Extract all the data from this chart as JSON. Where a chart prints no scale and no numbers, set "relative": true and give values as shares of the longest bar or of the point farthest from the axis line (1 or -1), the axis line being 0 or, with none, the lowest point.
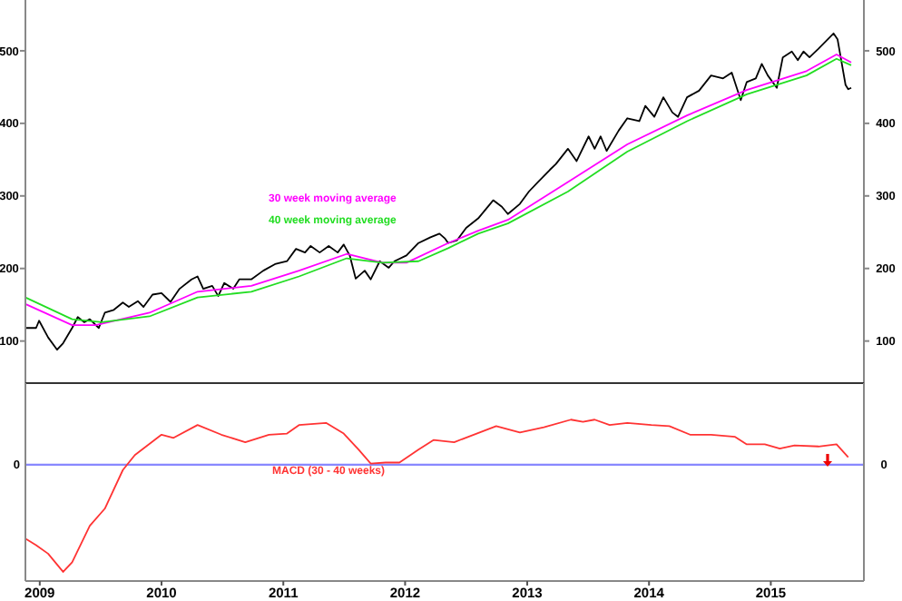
{
  "chart_data": [
    {
      "type": "line",
      "xlim": [
        "2008-11-19",
        "2015-10-07"
      ],
      "ylim": [
        42,
        570
      ],
      "yticks": [
        100,
        200,
        300,
        400,
        500
      ],
      "y2lim": [
        42,
        570
      ],
      "y2ticks": [
        100,
        200,
        300,
        400,
        500
      ],
      "tick_labels": "y",
      "series": [
        {
          "color": "#000000",
          "x": [
            "2008-11-19",
            "2008-12-21",
            "2008-12-30",
            "2009-01-26",
            "2009-02-22",
            "2009-03-12",
            "2009-04-08",
            "2009-04-25",
            "2009-05-14",
            "2009-05-31",
            "2009-06-27",
            "2009-07-15",
            "2009-08-11",
            "2009-09-07",
            "2009-09-25",
            "2009-10-22",
            "2009-11-08",
            "2009-12-05",
            "2010-01-01",
            "2010-01-28",
            "2010-02-24",
            "2010-04-01",
            "2010-04-19",
            "2010-05-06",
            "2010-06-02",
            "2010-06-20",
            "2010-07-08",
            "2010-08-04",
            "2010-08-22",
            "2010-09-27",
            "2010-11-02",
            "2010-12-07",
            "2011-01-12",
            "2011-02-08",
            "2011-03-07",
            "2011-03-24",
            "2011-04-20",
            "2011-05-17",
            "2011-06-13",
            "2011-07-01",
            "2011-07-19",
            "2011-08-06",
            "2011-09-02",
            "2011-09-20",
            "2011-10-17",
            "2011-11-13",
            "2011-11-30",
            "2012-01-05",
            "2012-02-10",
            "2012-03-17",
            "2012-04-13",
            "2012-04-30",
            "2012-05-09",
            "2012-06-05",
            "2012-07-02",
            "2012-08-07",
            "2012-09-21",
            "2012-10-17",
            "2012-11-04",
            "2012-12-10",
            "2013-01-06",
            "2013-02-02",
            "2013-03-10",
            "2013-03-28",
            "2013-05-03",
            "2013-05-29",
            "2013-07-04",
            "2013-07-22",
            "2013-08-09",
            "2013-08-27",
            "2013-10-02",
            "2013-10-28",
            "2013-12-03",
            "2013-12-21",
            "2014-01-17",
            "2014-02-13",
            "2014-03-12",
            "2014-03-29",
            "2014-04-25",
            "2014-05-31",
            "2014-07-06",
            "2014-08-11",
            "2014-09-06",
            "2014-10-03",
            "2014-10-21",
            "2014-11-17",
            "2014-12-05",
            "2014-12-23",
            "2015-01-19",
            "2015-02-06",
            "2015-03-05",
            "2015-03-23",
            "2015-04-09",
            "2015-04-27",
            "2015-05-24",
            "2015-07-08",
            "2015-07-20",
            "2015-08-13",
            "2015-08-21",
            "2015-08-30"
          ],
          "values": [
            118,
            118,
            128,
            105,
            88,
            97,
            118,
            133,
            126,
            130,
            118,
            139,
            143,
            153,
            147,
            155,
            147,
            164,
            166,
            154,
            172,
            185,
            189,
            172,
            176,
            162,
            180,
            172,
            185,
            185,
            197,
            206,
            210,
            227,
            222,
            231,
            222,
            231,
            222,
            233,
            218,
            186,
            197,
            185,
            210,
            201,
            210,
            218,
            235,
            243,
            248,
            241,
            235,
            239,
            256,
            269,
            294,
            285,
            275,
            289,
            306,
            319,
            336,
            344,
            365,
            348,
            382,
            365,
            382,
            362,
            390,
            407,
            403,
            424,
            409,
            436,
            415,
            409,
            436,
            445,
            466,
            462,
            470,
            432,
            457,
            462,
            482,
            466,
            449,
            491,
            499,
            487,
            499,
            491,
            503,
            524,
            516,
            453,
            447,
            449
          ]
        },
        {
          "name": "30 week moving average",
          "color": "#ff00ff",
          "x": [
            "2008-11-19",
            "2009-04-08",
            "2009-06-18",
            "2009-11-26",
            "2010-04-19",
            "2010-09-27",
            "2011-02-17",
            "2011-07-10",
            "2011-10-25",
            "2012-01-05",
            "2012-05-09",
            "2012-08-07",
            "2012-11-04",
            "2013-05-03",
            "2013-10-28",
            "2014-04-25",
            "2014-10-21",
            "2015-04-18",
            "2015-07-17",
            "2015-08-30"
          ],
          "values": [
            151,
            122,
            122,
            139,
            168,
            176,
            197,
            220,
            208,
            208,
            235,
            252,
            267,
            319,
            371,
            411,
            446,
            472,
            495,
            484
          ]
        },
        {
          "name": "40 week moving average",
          "color": "#22dd22",
          "x": [
            "2008-11-19",
            "2009-04-08",
            "2009-07-06",
            "2009-11-26",
            "2010-04-19",
            "2010-09-27",
            "2011-02-17",
            "2011-07-10",
            "2011-10-25",
            "2012-02-10",
            "2012-05-09",
            "2012-08-07",
            "2012-11-04",
            "2013-05-03",
            "2013-10-28",
            "2014-04-25",
            "2014-10-21",
            "2015-04-18",
            "2015-07-17",
            "2015-08-30"
          ],
          "values": [
            160,
            130,
            126,
            134,
            160,
            168,
            189,
            214,
            208,
            210,
            228,
            248,
            262,
            306,
            361,
            403,
            440,
            466,
            489,
            480
          ]
        }
      ]
    },
    {
      "type": "line",
      "relative": true,
      "xlim": [
        "2008-11-19",
        "2015-10-07"
      ],
      "xticks": [
        "2009",
        "2010",
        "2011",
        "2012",
        "2013",
        "2014",
        "2015"
      ],
      "tick_labels": "x",
      "ref_lines": [
        {
          "axis": "y",
          "value": 0,
          "label": "0",
          "color": "#8888ff"
        }
      ],
      "series": [
        {
          "name": "MACD (30 - 40 weeks)",
          "color": "#ff3333",
          "x": [
            "2008-11-19",
            "2008-12-21",
            "2009-01-26",
            "2009-03-12",
            "2009-04-08",
            "2009-05-31",
            "2009-07-15",
            "2009-09-07",
            "2009-10-13",
            "2010-01-01",
            "2010-02-06",
            "2010-04-19",
            "2010-06-29",
            "2010-09-09",
            "2010-11-19",
            "2011-01-12",
            "2011-02-17",
            "2011-05-09",
            "2011-07-01",
            "2011-08-15",
            "2011-09-20",
            "2011-11-03",
            "2011-12-15",
            "2012-02-10",
            "2012-03-26",
            "2012-05-27",
            "2012-09-30",
            "2012-12-10",
            "2013-02-20",
            "2013-05-12",
            "2013-06-17",
            "2013-07-22",
            "2013-09-05",
            "2013-10-28",
            "2014-01-08",
            "2014-03-03",
            "2014-05-04",
            "2014-07-06",
            "2014-09-16",
            "2014-10-21",
            "2014-12-14",
            "2015-01-28",
            "2015-03-13",
            "2015-05-24",
            "2015-07-17",
            "2015-08-21"
          ],
          "values": [
            -0.69,
            -0.75,
            -0.83,
            -1,
            -0.91,
            -0.57,
            -0.41,
            -0.05,
            0.09,
            0.28,
            0.25,
            0.37,
            0.28,
            0.21,
            0.28,
            0.29,
            0.37,
            0.39,
            0.29,
            0.14,
            0.01,
            0.02,
            0.02,
            0.14,
            0.23,
            0.21,
            0.36,
            0.3,
            0.35,
            0.42,
            0.4,
            0.42,
            0.37,
            0.39,
            0.37,
            0.36,
            0.28,
            0.28,
            0.26,
            0.19,
            0.19,
            0.15,
            0.18,
            0.17,
            0.19,
            0.07
          ]
        }
      ]
    }
  ]
}
